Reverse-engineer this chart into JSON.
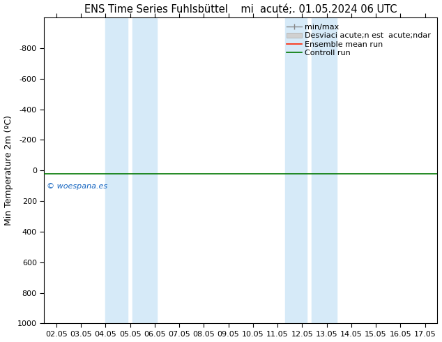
{
  "title_left": "ENS Time Series Fuhlsbüttel",
  "title_right": "mi  acuté;. 01.05.2024 06 UTC",
  "ylabel": "Min Temperature 2m (ºC)",
  "ylim_bottom": 1000,
  "ylim_top": -1000,
  "yticks": [
    -800,
    -600,
    -400,
    -200,
    0,
    200,
    400,
    600,
    800,
    1000
  ],
  "xtick_labels": [
    "02.05",
    "03.05",
    "04.05",
    "05.05",
    "06.05",
    "07.05",
    "08.05",
    "09.05",
    "10.05",
    "11.05",
    "12.05",
    "13.05",
    "14.05",
    "15.05",
    "16.05",
    "17.05"
  ],
  "xtick_positions": [
    0,
    1,
    2,
    3,
    4,
    5,
    6,
    7,
    8,
    9,
    10,
    11,
    12,
    13,
    14,
    15
  ],
  "shade_regions": [
    [
      2.0,
      2.9
    ],
    [
      3.1,
      4.1
    ],
    [
      9.3,
      10.2
    ],
    [
      10.4,
      11.4
    ]
  ],
  "shade_color": "#d6eaf8",
  "line_y": 20,
  "watermark": "© woespana.es",
  "watermark_color": "#1565c0",
  "legend_labels": [
    "min/max",
    "Desviaci acute;n est  acute;ndar",
    "Ensemble mean run",
    "Controll run"
  ],
  "legend_line_colors": [
    "#888888",
    "#aaaaaa",
    "#ff2200",
    "#007700"
  ],
  "background_color": "#ffffff",
  "title_fontsize": 10.5,
  "tick_fontsize": 8,
  "legend_fontsize": 8
}
